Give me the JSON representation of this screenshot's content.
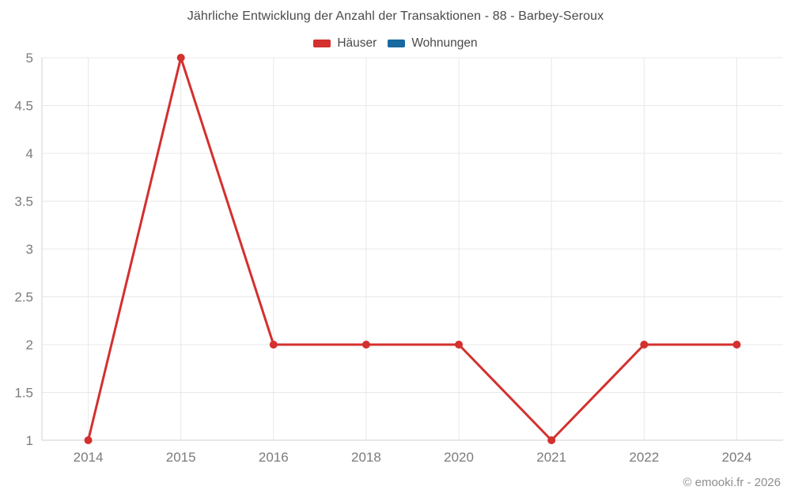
{
  "chart_data": {
    "type": "line",
    "title": "Jährliche Entwicklung der Anzahl der Transaktionen - 88 - Barbey-Seroux",
    "categories": [
      "2014",
      "2015",
      "2016",
      "2018",
      "2020",
      "2021",
      "2022",
      "2024"
    ],
    "series": [
      {
        "name": "Häuser",
        "color": "#d3302e",
        "values": [
          1,
          5,
          2,
          2,
          2,
          1,
          2,
          2
        ]
      },
      {
        "name": "Wohnungen",
        "color": "#1769a0",
        "values": []
      }
    ],
    "xlabel": "",
    "ylabel": "",
    "ylim": [
      1,
      5
    ],
    "ytick_step": 0.5,
    "ytick_labels": [
      "1",
      "1.5",
      "2",
      "2.5",
      "3",
      "3.5",
      "4",
      "4.5",
      "5"
    ],
    "grid": true,
    "legend_position": "top",
    "credit": "© emooki.fr - 2026",
    "colors": {
      "grid": "#e8e8e8",
      "axis": "#d2d2d2",
      "tick_label": "#7b7b7b",
      "title_text": "#4a4a4a",
      "credit_text": "#8e8e8e"
    }
  }
}
